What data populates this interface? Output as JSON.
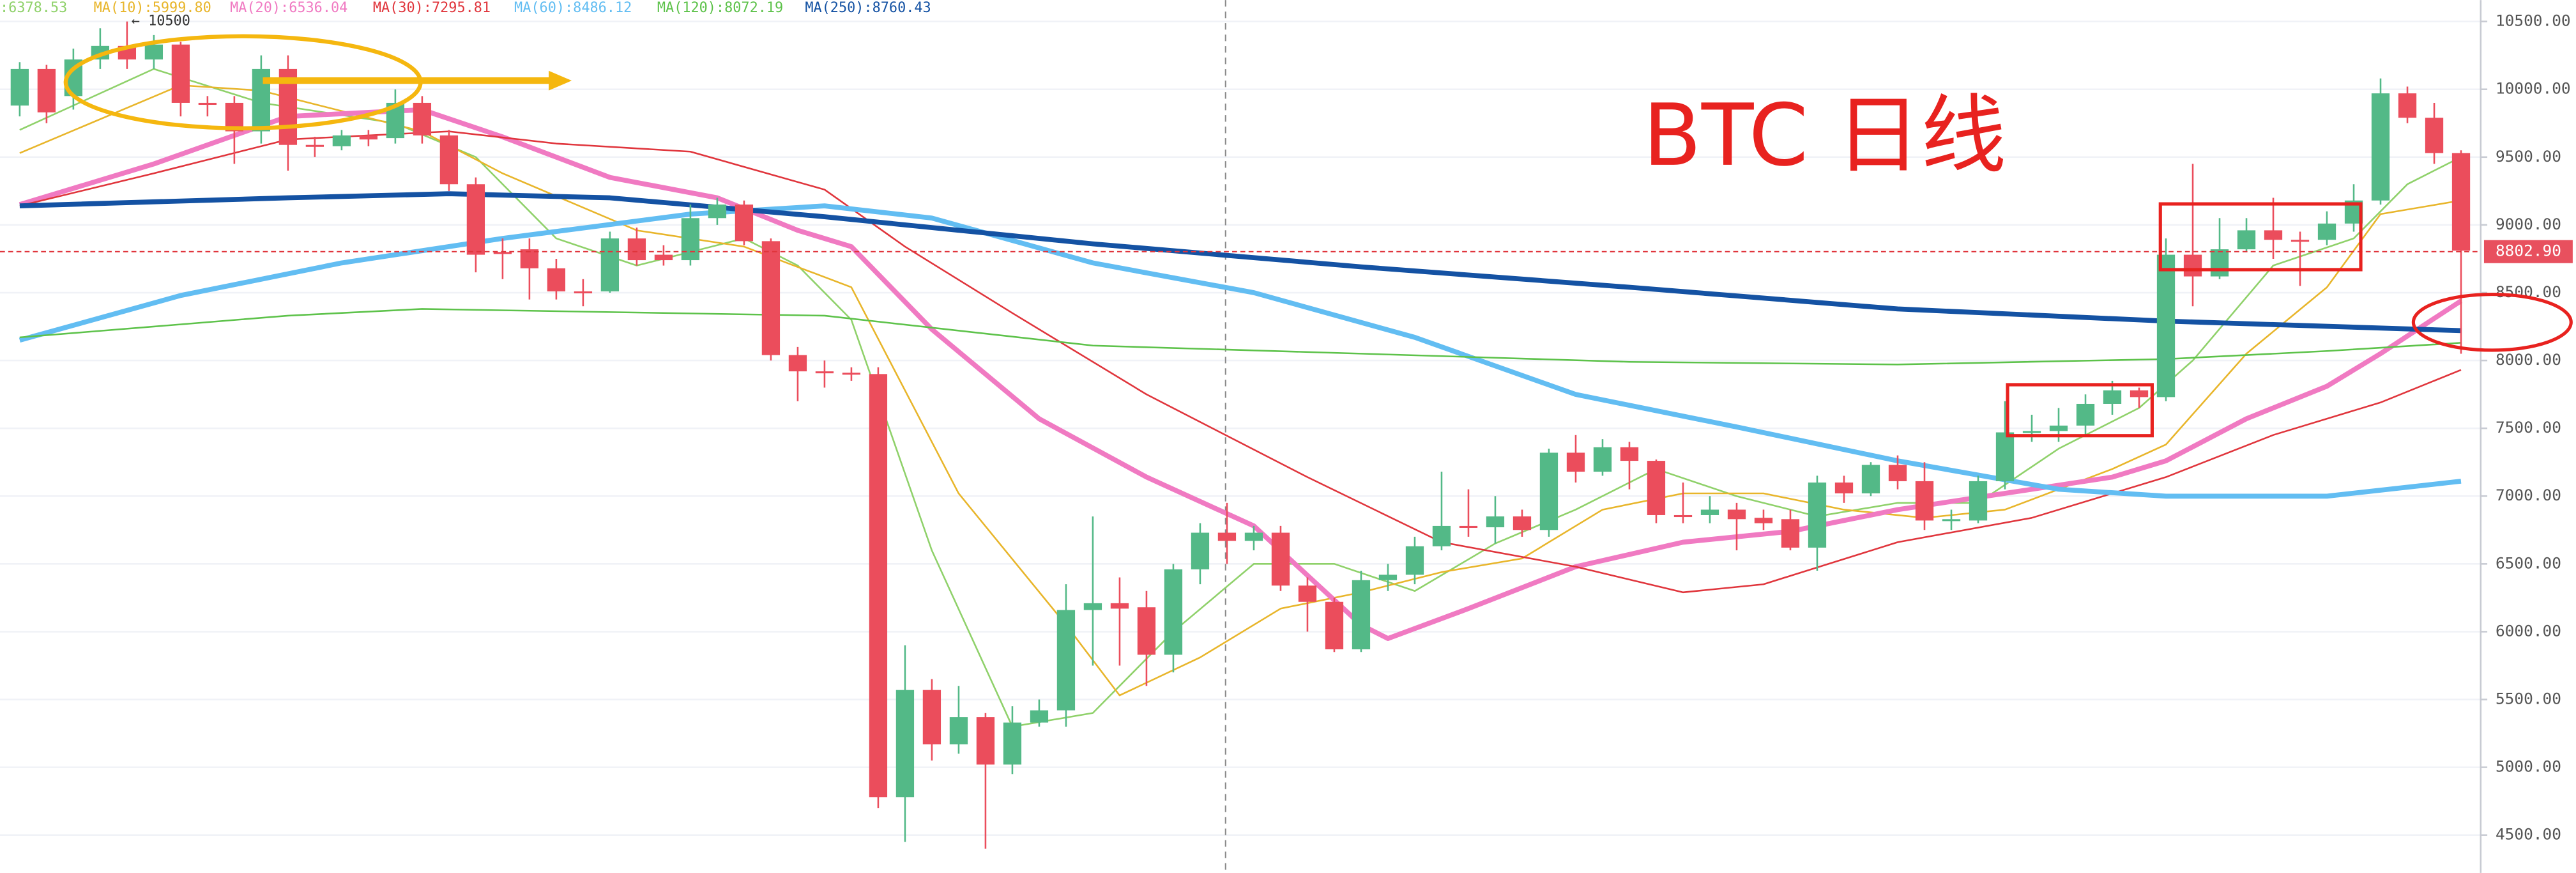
{
  "chart_data": {
    "type": "candlestick",
    "up_color": "#53b987",
    "down_color": "#eb4d5c",
    "open": [
      9880,
      10150,
      9950,
      10220,
      10320,
      10220,
      10330,
      9900,
      9900,
      9690,
      10150,
      9590,
      9580,
      9660,
      9640,
      9900,
      9660,
      9300,
      8800,
      8820,
      8680,
      8510,
      8510,
      8900,
      8780,
      8740,
      9050,
      9150,
      8880,
      8040,
      7920,
      7910,
      7900,
      4780,
      5570,
      5170,
      5370,
      5020,
      5330,
      5420,
      6160,
      6210,
      6180,
      5830,
      6460,
      6730,
      6670,
      6730,
      6340,
      6220,
      5870,
      6380,
      6420,
      6630,
      6780,
      6770,
      6850,
      6750,
      7320,
      7180,
      7360,
      7260,
      6860,
      6860,
      6900,
      6840,
      6830,
      6620,
      7100,
      7020,
      7230,
      7110,
      6820,
      6820,
      7110,
      7470,
      7480,
      7520,
      7680,
      7780,
      7730,
      8780,
      8620,
      8820,
      8960,
      8890,
      8890,
      9010,
      9180,
      9970,
      9790,
      9530
    ],
    "high": [
      10200,
      10180,
      10300,
      10450,
      10500,
      10400,
      10350,
      9950,
      9950,
      10250,
      10250,
      9650,
      9700,
      9700,
      10000,
      9950,
      9700,
      9350,
      8900,
      8900,
      8750,
      8600,
      8950,
      8980,
      8850,
      9150,
      9200,
      9180,
      8900,
      8100,
      8000,
      7950,
      7950,
      5900,
      5650,
      5600,
      5400,
      5450,
      5500,
      6350,
      6850,
      6400,
      6300,
      6500,
      6800,
      6950,
      6780,
      6780,
      6400,
      6250,
      6450,
      6500,
      6700,
      7180,
      7050,
      7000,
      6900,
      7350,
      7450,
      7420,
      7400,
      7270,
      7100,
      7000,
      6950,
      6900,
      6900,
      7150,
      7150,
      7250,
      7300,
      7250,
      6900,
      7150,
      7700,
      7600,
      7650,
      7750,
      7850,
      7800,
      8900,
      9450,
      9050,
      9050,
      9200,
      8950,
      9100,
      9300,
      10080,
      10020,
      9900,
      9550
    ],
    "low": [
      9800,
      9750,
      9850,
      10150,
      10150,
      10150,
      9800,
      9800,
      9450,
      9600,
      9400,
      9500,
      9550,
      9580,
      9600,
      9600,
      9250,
      8650,
      8600,
      8450,
      8450,
      8400,
      8500,
      8700,
      8700,
      8700,
      9000,
      8850,
      8000,
      7700,
      7800,
      7850,
      4700,
      4450,
      5050,
      5100,
      4400,
      4950,
      5300,
      5300,
      5750,
      5750,
      5600,
      5700,
      6350,
      6500,
      6600,
      6300,
      6000,
      5850,
      5850,
      6300,
      6350,
      6600,
      6700,
      6650,
      6700,
      6700,
      7100,
      7150,
      7050,
      6800,
      6800,
      6800,
      6600,
      6750,
      6600,
      6450,
      6950,
      7000,
      7050,
      6750,
      6750,
      6800,
      7050,
      7400,
      7400,
      7450,
      7600,
      7650,
      7700,
      8400,
      8600,
      8800,
      8750,
      8550,
      8850,
      8950,
      9150,
      9750,
      9450,
      8050
    ],
    "close": [
      10150,
      9830,
      10220,
      10320,
      10220,
      10330,
      9900,
      9890,
      9690,
      10150,
      9590,
      9580,
      9660,
      9630,
      9900,
      9660,
      9300,
      8780,
      8790,
      8680,
      8510,
      8500,
      8900,
      8740,
      8740,
      9050,
      9150,
      8880,
      8040,
      7920,
      7910,
      7900,
      4780,
      5570,
      5170,
      5370,
      5020,
      5330,
      5420,
      6160,
      6210,
      6170,
      5830,
      6460,
      6730,
      6670,
      6730,
      6340,
      6220,
      5870,
      6380,
      6420,
      6630,
      6780,
      6770,
      6850,
      6750,
      7320,
      7180,
      7360,
      7260,
      6860,
      6850,
      6900,
      6830,
      6800,
      6620,
      7100,
      7020,
      7230,
      7110,
      6820,
      6830,
      7110,
      7470,
      7480,
      7520,
      7680,
      7780,
      7730,
      8780,
      8620,
      8820,
      8960,
      8890,
      8880,
      9010,
      9180,
      9970,
      9790,
      9530,
      8810
    ],
    "series": [
      {
        "label": ":6378.53",
        "color": "#8fd16a",
        "width": 1,
        "x": [
          0,
          5,
          9,
          14,
          17,
          20,
          23,
          27,
          29,
          31,
          34,
          37,
          40,
          43,
          46,
          49,
          52,
          55,
          58,
          61,
          64,
          67,
          70,
          73,
          76,
          79,
          81,
          84,
          87,
          89,
          91
        ],
        "values": [
          9700,
          10150,
          9900,
          9750,
          9500,
          8900,
          8700,
          8900,
          8700,
          8300,
          6600,
          5300,
          5400,
          6000,
          6500,
          6500,
          6300,
          6650,
          6900,
          7200,
          7000,
          6850,
          6950,
          6950,
          7350,
          7650,
          8000,
          8700,
          8900,
          9300,
          9500
        ]
      },
      {
        "label": "MA(10):5999.80",
        "color": "#e8b52a",
        "width": 1,
        "x": [
          0,
          6,
          9,
          15,
          18,
          23,
          27,
          31,
          35,
          39,
          41,
          44,
          47,
          50,
          53,
          56,
          59,
          62,
          65,
          68,
          71,
          74,
          78,
          80,
          83,
          86,
          88,
          91
        ],
        "values": [
          9530,
          10030,
          9990,
          9690,
          9380,
          8960,
          8840,
          8540,
          7020,
          6050,
          5530,
          5810,
          6170,
          6290,
          6440,
          6540,
          6900,
          7020,
          7020,
          6900,
          6840,
          6900,
          7200,
          7380,
          8050,
          8540,
          9080,
          9180
        ]
      },
      {
        "label": "MA(20):6536.04",
        "color": "#f07ac2",
        "width": 3,
        "x": [
          0,
          5,
          10,
          15,
          18,
          22,
          26,
          29,
          31,
          34,
          38,
          42,
          46,
          50,
          51,
          54,
          58,
          62,
          66,
          70,
          74,
          78,
          80,
          83,
          86,
          88,
          91
        ],
        "values": [
          9150,
          9450,
          9800,
          9850,
          9650,
          9350,
          9200,
          8960,
          8840,
          8230,
          7570,
          7140,
          6780,
          6050,
          5950,
          6170,
          6480,
          6660,
          6740,
          6900,
          7020,
          7140,
          7260,
          7570,
          7810,
          8050,
          8440
        ]
      },
      {
        "label": "MA(30):7295.81",
        "color": "#e0353c",
        "width": 1,
        "x": [
          0,
          5,
          10,
          16,
          20,
          25,
          30,
          33,
          37,
          42,
          48,
          53,
          58,
          62,
          65,
          70,
          75,
          80,
          84,
          88,
          91
        ],
        "values": [
          9140,
          9380,
          9630,
          9690,
          9600,
          9540,
          9260,
          8840,
          8350,
          7750,
          7140,
          6660,
          6480,
          6290,
          6350,
          6660,
          6840,
          7140,
          7450,
          7690,
          7930
        ]
      },
      {
        "label": "MA(60):8486.12",
        "color": "#62bdf2",
        "width": 3,
        "x": [
          0,
          6,
          12,
          18,
          25,
          30,
          34,
          40,
          46,
          52,
          58,
          64,
          70,
          76,
          80,
          86,
          91
        ],
        "values": [
          8150,
          8480,
          8720,
          8900,
          9080,
          9140,
          9050,
          8720,
          8500,
          8170,
          7750,
          7510,
          7260,
          7050,
          7000,
          7000,
          7110
        ]
      },
      {
        "label": "MA(120):8072.19",
        "color": "#5dc24a",
        "width": 1,
        "x": [
          0,
          10,
          15,
          30,
          40,
          50,
          60,
          70,
          80,
          86,
          91
        ],
        "values": [
          8170,
          8330,
          8380,
          8330,
          8110,
          8050,
          7990,
          7970,
          8010,
          8070,
          8130
        ]
      },
      {
        "label": "MA(250):8760.43",
        "color": "#1452a3",
        "width": 3,
        "x": [
          0,
          10,
          16,
          22,
          30,
          40,
          50,
          60,
          70,
          80,
          91
        ],
        "values": [
          9140,
          9200,
          9230,
          9200,
          9060,
          8860,
          8690,
          8540,
          8380,
          8290,
          8220
        ]
      }
    ],
    "ylim": [
      4221,
      10658
    ],
    "yticks": [
      {
        "value": 4500,
        "label": "4500.00"
      },
      {
        "value": 5000,
        "label": "5000.00"
      },
      {
        "value": 5500,
        "label": "5500.00"
      },
      {
        "value": 6000,
        "label": "6000.00"
      },
      {
        "value": 6500,
        "label": "6500.00"
      },
      {
        "value": 7000,
        "label": "7000.00"
      },
      {
        "value": 7500,
        "label": "7500.00"
      },
      {
        "value": 8000,
        "label": "8000.00"
      },
      {
        "value": 8500,
        "label": "8500.00"
      },
      {
        "value": 9000,
        "label": "9000.00"
      },
      {
        "value": 9500,
        "label": "9500.00"
      },
      {
        "value": 10000,
        "label": "10000.00"
      },
      {
        "value": 10500,
        "label": "10500.00"
      }
    ],
    "grid": true,
    "last_price": {
      "value": 8802.9,
      "label": "8802.90"
    },
    "title": "BTC 日线",
    "high_marker": "← 10500"
  }
}
